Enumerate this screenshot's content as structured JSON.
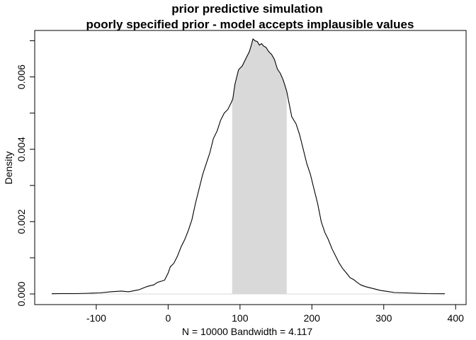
{
  "chart_data": {
    "type": "area",
    "title": "prior predictive simulation",
    "subtitle": "poorly specified prior - model accepts implausible values",
    "xlabel": "N = 10000   Bandwidth = 4.117",
    "ylabel": "Density",
    "xlim": [
      -162,
      385
    ],
    "ylim": [
      0,
      0.00705
    ],
    "x_ticks": [
      -100,
      0,
      100,
      200,
      300,
      400
    ],
    "x_tick_labels": [
      "-100",
      "0",
      "100",
      "200",
      "300",
      "400"
    ],
    "y_ticks": [
      0,
      0.001,
      0.002,
      0.003,
      0.004,
      0.005,
      0.006,
      0.007
    ],
    "y_tick_labels": [
      "0.000",
      "",
      "0.002",
      "",
      "0.004",
      "",
      "0.006",
      ""
    ],
    "shaded_interval": [
      89,
      165
    ],
    "shade_color": "#d9d9d9",
    "line_color": "#000000",
    "series": [
      {
        "x": [
          -162,
          -150,
          -130,
          -110,
          -95,
          -80,
          -65,
          -55,
          -50,
          -45,
          -40,
          -35,
          -30,
          -25,
          -20,
          -15,
          -10,
          -5,
          0,
          3,
          8,
          13,
          18,
          23,
          28,
          33,
          38,
          43,
          48,
          53,
          58,
          63,
          68,
          73,
          78,
          83,
          88,
          90,
          93,
          98,
          103,
          108,
          113,
          116,
          118,
          121,
          124,
          127,
          130,
          133,
          136,
          140,
          144,
          148,
          152,
          156,
          160,
          162,
          165,
          168,
          172,
          178,
          183,
          188,
          193,
          198,
          203,
          208,
          213,
          218,
          223,
          228,
          233,
          238,
          243,
          248,
          253,
          258,
          263,
          268,
          275,
          285,
          295,
          305,
          315,
          330,
          345,
          360,
          385
        ],
        "y": [
          5e-06,
          1e-05,
          1e-05,
          2e-05,
          3e-05,
          6e-05,
          8e-05,
          6e-05,
          8e-05,
          0.0001,
          0.00012,
          0.00016,
          0.0002,
          0.00023,
          0.00025,
          0.00032,
          0.00035,
          0.00038,
          0.00058,
          0.00075,
          0.00085,
          0.00105,
          0.0013,
          0.0015,
          0.00175,
          0.00205,
          0.0025,
          0.0029,
          0.0033,
          0.0036,
          0.0039,
          0.0043,
          0.0045,
          0.0048,
          0.005,
          0.0051,
          0.0053,
          0.0054,
          0.0058,
          0.0062,
          0.0063,
          0.0065,
          0.0067,
          0.0069,
          0.00705,
          0.007,
          0.00698,
          0.00688,
          0.00692,
          0.00685,
          0.00682,
          0.0067,
          0.00662,
          0.00648,
          0.00622,
          0.0061,
          0.00592,
          0.0058,
          0.0056,
          0.0053,
          0.0049,
          0.0047,
          0.0044,
          0.004,
          0.0036,
          0.0033,
          0.0029,
          0.0025,
          0.002,
          0.0017,
          0.0015,
          0.00125,
          0.00105,
          0.00085,
          0.0007,
          0.00058,
          0.00045,
          0.0004,
          0.00032,
          0.00025,
          0.0002,
          0.00015,
          0.0001,
          7e-05,
          4e-05,
          3e-05,
          2e-05,
          1e-05,
          5e-06
        ]
      }
    ]
  }
}
